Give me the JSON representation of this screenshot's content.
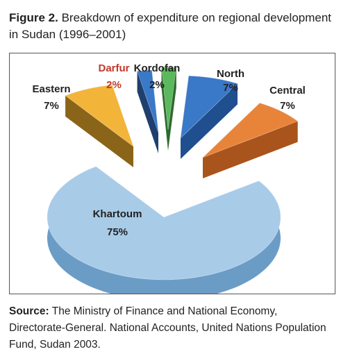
{
  "figure": {
    "label": "Figure 2.",
    "title": "Breakdown of expenditure on regional development in Sudan (1996–2001)"
  },
  "source": {
    "label": "Source:",
    "text": "The Ministry of Finance and National Economy, Directorate-General. National Accounts, United Nations Population Fund, Sudan 2003."
  },
  "chart_data": {
    "type": "pie",
    "style": "3d-exploded",
    "title": "Breakdown of expenditure on regional development in Sudan (1996–2001)",
    "slices": [
      {
        "name": "North",
        "value": 7,
        "value_label": "7%",
        "color": "#3a78c8",
        "side": "#1f4f8f"
      },
      {
        "name": "Central",
        "value": 7,
        "value_label": "7%",
        "color": "#e8843a",
        "side": "#a9541c"
      },
      {
        "name": "Khartoum",
        "value": 75,
        "value_label": "75%",
        "color": "#a8cbe8",
        "side": "#6b9cc6"
      },
      {
        "name": "Eastern",
        "value": 7,
        "value_label": "7%",
        "color": "#f2b53a",
        "side": "#8a6418"
      },
      {
        "name": "Darfur",
        "value": 2,
        "value_label": "2%",
        "color": "#3a78c8",
        "side": "#1f3f6f",
        "label_color": "#c0392b"
      },
      {
        "name": "Kordofan",
        "value": 2,
        "value_label": "2%",
        "color": "#5cb85c",
        "side": "#2e6b2e"
      }
    ],
    "legend": "none"
  }
}
